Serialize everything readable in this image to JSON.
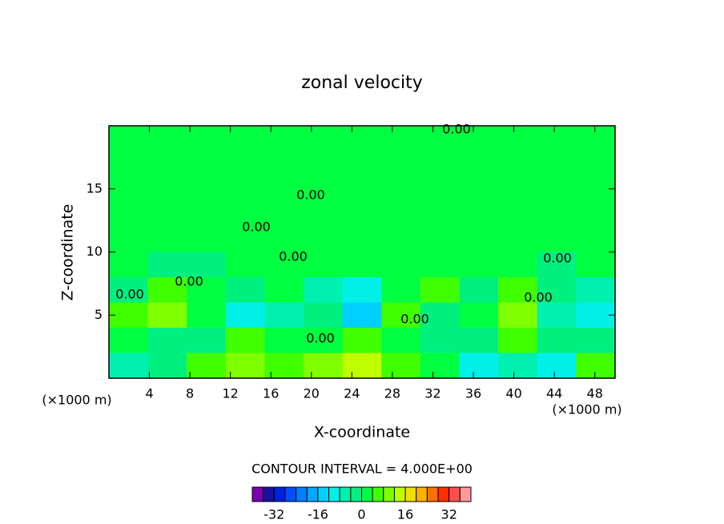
{
  "chart_data": {
    "type": "contour",
    "title": "zonal velocity",
    "xlabel": "X-coordinate",
    "ylabel": "Z-coordinate",
    "xunit": "(×1000 m)",
    "xlim": [
      0,
      50
    ],
    "ylim": [
      0,
      20
    ],
    "xticks": [
      4,
      8,
      12,
      16,
      20,
      24,
      28,
      32,
      36,
      40,
      44,
      48
    ],
    "yticks": [
      5,
      10,
      15
    ],
    "z": [
      [
        2,
        2,
        2,
        2,
        2,
        2,
        2,
        2,
        2,
        2,
        2,
        2,
        2
      ],
      [
        2,
        2,
        2,
        2,
        2,
        2,
        2,
        2,
        2,
        2,
        2,
        2,
        2
      ],
      [
        2,
        2,
        2,
        2,
        2,
        2,
        2,
        2,
        2,
        2,
        2,
        2,
        2
      ],
      [
        2,
        2,
        2,
        2,
        2,
        2,
        2,
        2,
        2,
        2,
        2,
        2,
        2
      ],
      [
        2,
        2,
        2,
        2,
        2,
        2,
        2,
        2,
        2,
        2,
        2,
        2,
        2
      ],
      [
        2,
        -2,
        -2,
        2,
        2,
        2,
        2,
        2,
        2,
        2,
        2,
        -2,
        2
      ],
      [
        -2,
        6,
        2,
        -2,
        2,
        -6,
        -10,
        2,
        6,
        -2,
        6,
        -2,
        -6
      ],
      [
        6,
        10,
        2,
        -10,
        -6,
        -2,
        -14,
        6,
        -2,
        2,
        10,
        -6,
        -10
      ],
      [
        2,
        -2,
        -2,
        6,
        2,
        2,
        6,
        2,
        -2,
        -2,
        6,
        -2,
        -2
      ],
      [
        -6,
        -2,
        6,
        10,
        6,
        10,
        14,
        6,
        2,
        -10,
        -6,
        -10,
        6
      ]
    ],
    "annotations": [
      "0.00",
      "0.00",
      "0.00",
      "0.00",
      "0.00",
      "0.00",
      "0.00",
      "0.00",
      "0.00",
      "0.00"
    ],
    "contour_interval": "CONTOUR INTERVAL = 4.000E+00",
    "colorbar": {
      "levels": [
        -40,
        -36,
        -32,
        -28,
        -24,
        -20,
        -16,
        -12,
        -8,
        -4,
        0,
        4,
        8,
        12,
        16,
        20,
        24,
        28,
        32,
        36,
        40
      ],
      "colors": [
        "#7a00b0",
        "#1a10a0",
        "#0020e0",
        "#0050ff",
        "#0080ff",
        "#00a8ff",
        "#00d0ff",
        "#00f0e8",
        "#00f0b0",
        "#00f080",
        "#00ff40",
        "#40ff00",
        "#80ff00",
        "#c0ff00",
        "#f0e000",
        "#ffb000",
        "#ff7000",
        "#ff3000",
        "#ff5050",
        "#ff9a9a"
      ],
      "ticks": [
        -32,
        -16,
        0,
        16,
        32
      ]
    }
  }
}
